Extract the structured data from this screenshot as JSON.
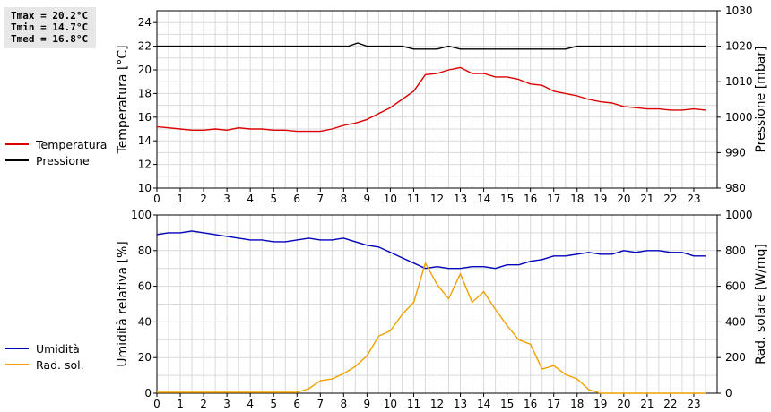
{
  "stats": {
    "tmax": "Tmax = 20.2°C",
    "tmin": "Tmin = 14.7°C",
    "tmed": "Tmed = 16.8°C"
  },
  "legend_top": [
    {
      "label": "Temperatura",
      "color": "#dd0000"
    },
    {
      "label": "Pressione",
      "color": "#000000"
    }
  ],
  "legend_bottom": [
    {
      "label": "Umidità",
      "color": "#0000bb"
    },
    {
      "label": "Rad. sol.",
      "color": "#f0a000"
    }
  ],
  "chart_data": [
    {
      "type": "line",
      "x_ticks": [
        "0",
        "1",
        "2",
        "3",
        "4",
        "5",
        "6",
        "7",
        "8",
        "9",
        "10",
        "11",
        "12",
        "13",
        "14",
        "15",
        "16",
        "17",
        "18",
        "19",
        "20",
        "21",
        "22",
        "23"
      ],
      "xlim": [
        0,
        24
      ],
      "ylabel": "Temperatura [°C]",
      "ylim": [
        10,
        25
      ],
      "y_ticks": [
        10,
        12,
        14,
        16,
        18,
        20,
        22,
        24
      ],
      "y2label": "Pressione [mbar]",
      "y2lim": [
        980,
        1030
      ],
      "y2_ticks": [
        980,
        990,
        1000,
        1010,
        1020,
        1030
      ],
      "grid": true,
      "series": [
        {
          "name": "Temperatura",
          "axis": "left",
          "color": "#dd0000",
          "x": [
            0,
            0.5,
            1,
            1.5,
            2,
            2.5,
            3,
            3.5,
            4,
            4.5,
            5,
            5.5,
            6,
            6.5,
            7,
            7.5,
            8,
            8.5,
            9,
            9.5,
            10,
            10.5,
            11,
            11.5,
            12,
            12.5,
            13,
            13.5,
            14,
            14.5,
            15,
            15.5,
            16,
            16.5,
            17,
            17.5,
            18,
            18.5,
            19,
            19.5,
            20,
            20.5,
            21,
            21.5,
            22,
            22.5,
            23,
            23.5
          ],
          "y": [
            15.2,
            15.1,
            15.0,
            14.9,
            14.9,
            15.0,
            14.9,
            15.1,
            15.0,
            15.0,
            14.9,
            14.9,
            14.8,
            14.8,
            14.8,
            15.0,
            15.3,
            15.5,
            15.8,
            16.3,
            16.8,
            17.5,
            18.2,
            19.6,
            19.7,
            20.0,
            20.2,
            19.7,
            19.7,
            19.4,
            19.4,
            19.2,
            18.8,
            18.7,
            18.2,
            18.0,
            17.8,
            17.5,
            17.3,
            17.2,
            16.9,
            16.8,
            16.7,
            16.7,
            16.6,
            16.6,
            16.7,
            16.6
          ]
        },
        {
          "name": "Pressione",
          "axis": "right",
          "color": "#000000",
          "x": [
            0,
            8.2,
            8.6,
            9.0,
            10.5,
            11.0,
            12.0,
            12.5,
            13.0,
            17.5,
            18.0,
            23.5
          ],
          "y": [
            1020,
            1020,
            1020.9,
            1020,
            1020,
            1019.2,
            1019.2,
            1020,
            1019.2,
            1019.2,
            1020,
            1020
          ]
        }
      ]
    },
    {
      "type": "line",
      "x_ticks": [
        "0",
        "1",
        "2",
        "3",
        "4",
        "5",
        "6",
        "7",
        "8",
        "9",
        "10",
        "11",
        "12",
        "13",
        "14",
        "15",
        "16",
        "17",
        "18",
        "19",
        "20",
        "21",
        "22",
        "23"
      ],
      "xlim": [
        0,
        24
      ],
      "ylabel": "Umidità relativa [%]",
      "ylim": [
        0,
        100
      ],
      "y_ticks": [
        0,
        20,
        40,
        60,
        80,
        100
      ],
      "y2label": "Rad. solare [W/mq]",
      "y2lim": [
        0,
        1000
      ],
      "y2_ticks": [
        0,
        200,
        400,
        600,
        800,
        1000
      ],
      "grid": true,
      "series": [
        {
          "name": "Umidità",
          "axis": "left",
          "color": "#0000bb",
          "x": [
            0,
            0.5,
            1,
            1.5,
            2,
            2.5,
            3,
            3.5,
            4,
            4.5,
            5,
            5.5,
            6,
            6.5,
            7,
            7.5,
            8,
            8.5,
            9,
            9.5,
            10,
            10.5,
            11,
            11.5,
            12,
            12.5,
            13,
            13.5,
            14,
            14.5,
            15,
            15.5,
            16,
            16.5,
            17,
            17.5,
            18,
            18.5,
            19,
            19.5,
            20,
            20.5,
            21,
            21.5,
            22,
            22.5,
            23,
            23.5
          ],
          "y": [
            89,
            90,
            90,
            91,
            90,
            89,
            88,
            87,
            86,
            86,
            85,
            85,
            86,
            87,
            86,
            86,
            87,
            85,
            83,
            82,
            79,
            76,
            73,
            70,
            71,
            70,
            70,
            71,
            71,
            70,
            72,
            72,
            74,
            75,
            77,
            77,
            78,
            79,
            78,
            78,
            80,
            79,
            80,
            80,
            79,
            79,
            77,
            77
          ]
        },
        {
          "name": "Rad. sol.",
          "axis": "right",
          "color": "#f0a000",
          "x": [
            0,
            0.5,
            1,
            1.5,
            2,
            2.5,
            3,
            3.5,
            4,
            4.5,
            5,
            5.5,
            6,
            6.5,
            7,
            7.5,
            8,
            8.5,
            9,
            9.5,
            10,
            10.5,
            11,
            11.5,
            12,
            12.5,
            13,
            13.5,
            14,
            14.5,
            15,
            15.5,
            16,
            16.5,
            17,
            17.5,
            18,
            18.5,
            19,
            19.5,
            20,
            20.5,
            21,
            21.5,
            22,
            22.5,
            23,
            23.5
          ],
          "y": [
            5,
            5,
            5,
            5,
            5,
            5,
            5,
            5,
            5,
            5,
            5,
            5,
            5,
            25,
            70,
            80,
            110,
            150,
            210,
            320,
            350,
            440,
            510,
            730,
            610,
            530,
            670,
            510,
            570,
            470,
            380,
            300,
            275,
            135,
            155,
            105,
            80,
            20,
            0,
            0,
            0,
            0,
            0,
            0,
            0,
            0,
            0,
            0
          ]
        }
      ]
    }
  ]
}
